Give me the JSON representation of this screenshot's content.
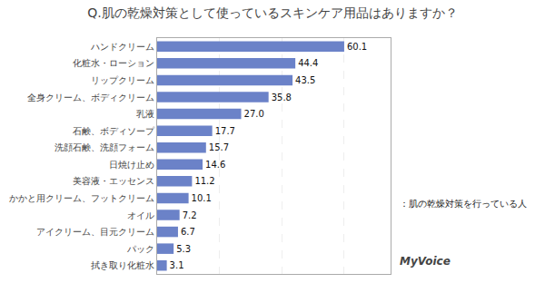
{
  "chart_data": {
    "type": "bar",
    "orientation": "horizontal",
    "title": "Q.肌の乾燥対策として使っているスキンケア用品はありますか？",
    "categories": [
      "拭き取り化粧水",
      "パック",
      "アイクリーム、目元クリーム",
      "オイル",
      "かかと用クリーム、フットクリーム",
      "美容液・エッセンス",
      "日焼け止め",
      "洗顔石鹸、洗顔フォーム",
      "石鹸、ボディソープ",
      "乳液",
      "全身クリーム、ボディクリーム",
      "リップクリーム",
      "化粧水・ローション",
      "ハンドクリーム"
    ],
    "values": [
      3.1,
      5.3,
      6.7,
      7.2,
      10.1,
      11.2,
      14.6,
      15.7,
      17.7,
      27.0,
      35.8,
      43.5,
      44.4,
      60.1
    ],
    "value_labels": [
      "3.1",
      "5.3",
      "6.7",
      "7.2",
      "10.1",
      "11.2",
      "14.6",
      "15.7",
      "17.7",
      "27.0",
      "35.8",
      "43.5",
      "44.4",
      "60.1"
    ],
    "color": "#6b82c8",
    "xlim": [
      0,
      75
    ],
    "xticks": [
      20,
      40,
      60
    ],
    "grid": true,
    "tick_labels": "y",
    "data_labels": true,
    "annotations": [
      "：肌の乾燥対策を行っている人",
      "MyVoice"
    ]
  }
}
